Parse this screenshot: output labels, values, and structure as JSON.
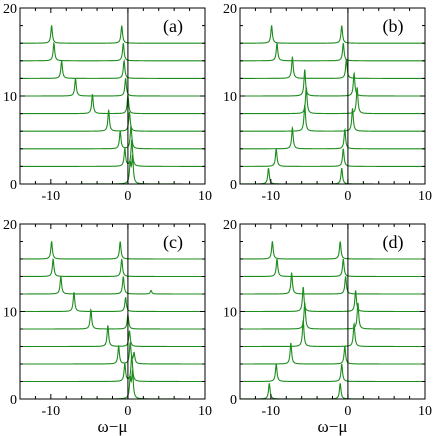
{
  "chart_data": [
    {
      "type": "line",
      "panel_label": "(a)",
      "xlabel": "",
      "ylabel": "",
      "xlim": [
        -14,
        10
      ],
      "ylim": [
        0,
        20
      ],
      "xticks": [
        -10,
        0,
        10
      ],
      "yticks": [
        0,
        10,
        20
      ],
      "xtick_labels": [
        "-10",
        "0",
        "10"
      ],
      "ytick_labels": [
        "0",
        "10",
        "20"
      ],
      "grid": false,
      "reference_line_x": 0,
      "series_color": "#1c8c1c",
      "traces": [
        {
          "offset": 0,
          "peaks": [
            [
              0.3,
              2.2
            ],
            [
              0.6,
              3.0
            ]
          ]
        },
        {
          "offset": 2,
          "peaks": [
            [
              -0.4,
              2.0
            ],
            [
              0.5,
              3.0
            ]
          ]
        },
        {
          "offset": 4,
          "peaks": [
            [
              -1.0,
              2.0
            ],
            [
              0.4,
              2.6
            ]
          ]
        },
        {
          "offset": 6,
          "peaks": [
            [
              -2.5,
              2.4
            ],
            [
              0.2,
              2.2
            ]
          ]
        },
        {
          "offset": 8,
          "peaks": [
            [
              -4.6,
              2.2
            ],
            [
              0.0,
              2.0
            ]
          ]
        },
        {
          "offset": 10,
          "peaks": [
            [
              -6.8,
              2.0
            ],
            [
              -0.3,
              2.0
            ]
          ]
        },
        {
          "offset": 12,
          "peaks": [
            [
              -8.6,
              2.0
            ],
            [
              -0.5,
              2.0
            ]
          ]
        },
        {
          "offset": 14,
          "peaks": [
            [
              -9.6,
              2.0
            ],
            [
              -0.6,
              2.0
            ]
          ]
        },
        {
          "offset": 16,
          "peaks": [
            [
              -9.9,
              2.0
            ],
            [
              -0.8,
              2.0
            ]
          ]
        }
      ]
    },
    {
      "type": "line",
      "panel_label": "(b)",
      "xlabel": "",
      "ylabel": "",
      "xlim": [
        -14,
        10
      ],
      "ylim": [
        0,
        20
      ],
      "xticks": [
        -10,
        0,
        10
      ],
      "yticks": [
        0,
        10,
        20
      ],
      "xtick_labels": [
        "-10",
        "0",
        "10"
      ],
      "ytick_labels": [
        "0",
        "10",
        "20"
      ],
      "grid": false,
      "reference_line_x": 0,
      "series_color": "#1c8c1c",
      "traces": [
        {
          "offset": 0,
          "peaks": [
            [
              -10.3,
              1.8
            ],
            [
              -0.8,
              1.8
            ]
          ]
        },
        {
          "offset": 2,
          "peaks": [
            [
              -9.3,
              2.0
            ],
            [
              -0.6,
              2.0
            ]
          ]
        },
        {
          "offset": 4,
          "peaks": [
            [
              -7.2,
              2.4
            ],
            [
              -0.4,
              2.2
            ]
          ]
        },
        {
          "offset": 6,
          "peaks": [
            [
              -5.6,
              3.0
            ],
            [
              0.6,
              2.6
            ]
          ]
        },
        {
          "offset": 8,
          "peaks": [
            [
              -5.4,
              3.0
            ],
            [
              1.2,
              3.0
            ]
          ]
        },
        {
          "offset": 10,
          "peaks": [
            [
              -5.6,
              3.0
            ],
            [
              0.8,
              2.6
            ]
          ]
        },
        {
          "offset": 12,
          "peaks": [
            [
              -7.2,
              2.4
            ],
            [
              -0.2,
              2.2
            ]
          ]
        },
        {
          "offset": 14,
          "peaks": [
            [
              -9.2,
              2.0
            ],
            [
              -0.6,
              2.0
            ]
          ]
        },
        {
          "offset": 16,
          "peaks": [
            [
              -9.9,
              2.0
            ],
            [
              -0.8,
              2.0
            ]
          ]
        }
      ]
    },
    {
      "type": "line",
      "panel_label": "(c)",
      "xlabel": "ω−μ",
      "ylabel": "",
      "xlim": [
        -14,
        10
      ],
      "ylim": [
        0,
        20
      ],
      "xticks": [
        -10,
        0,
        10
      ],
      "yticks": [
        0,
        10,
        20
      ],
      "xtick_labels": [
        "-10",
        "0",
        "10"
      ],
      "ytick_labels": [
        "0",
        "10",
        "20"
      ],
      "grid": false,
      "reference_line_x": 0,
      "series_color": "#1c8c1c",
      "traces": [
        {
          "offset": 0,
          "peaks": [
            [
              0.3,
              2.2
            ],
            [
              0.6,
              3.0
            ]
          ]
        },
        {
          "offset": 2,
          "peaks": [
            [
              -0.4,
              2.0
            ],
            [
              0.5,
              3.0
            ]
          ]
        },
        {
          "offset": 4,
          "peaks": [
            [
              -1.2,
              2.0
            ],
            [
              0.3,
              2.4
            ],
            [
              0.8,
              1.2
            ]
          ]
        },
        {
          "offset": 6,
          "peaks": [
            [
              -2.6,
              2.4
            ],
            [
              0.2,
              1.8
            ]
          ]
        },
        {
          "offset": 8,
          "peaks": [
            [
              -4.8,
              2.2
            ],
            [
              0.0,
              1.6
            ]
          ]
        },
        {
          "offset": 10,
          "peaks": [
            [
              -7.0,
              2.2
            ],
            [
              -0.3,
              1.6
            ]
          ]
        },
        {
          "offset": 12,
          "peaks": [
            [
              -8.7,
              2.0
            ],
            [
              -0.6,
              2.0
            ],
            [
              3.0,
              0.4
            ]
          ]
        },
        {
          "offset": 14,
          "peaks": [
            [
              -9.7,
              2.0
            ],
            [
              -0.8,
              2.0
            ]
          ]
        },
        {
          "offset": 16,
          "peaks": [
            [
              -9.9,
              2.0
            ],
            [
              -1.0,
              2.0
            ]
          ]
        }
      ]
    },
    {
      "type": "line",
      "panel_label": "(d)",
      "xlabel": "ω−μ",
      "ylabel": "",
      "xlim": [
        -14,
        10
      ],
      "ylim": [
        0,
        20
      ],
      "xticks": [
        -10,
        0,
        10
      ],
      "yticks": [
        0,
        10,
        20
      ],
      "xtick_labels": [
        "-10",
        "0",
        "10"
      ],
      "ytick_labels": [
        "0",
        "10",
        "20"
      ],
      "grid": false,
      "reference_line_x": 0,
      "series_color": "#1c8c1c",
      "traces": [
        {
          "offset": 0,
          "peaks": [
            [
              -10.2,
              1.8
            ],
            [
              -1.0,
              1.8
            ]
          ]
        },
        {
          "offset": 2,
          "peaks": [
            [
              -9.3,
              2.0
            ],
            [
              -0.8,
              2.0
            ]
          ]
        },
        {
          "offset": 4,
          "peaks": [
            [
              -7.4,
              2.4
            ],
            [
              -0.4,
              2.0
            ]
          ]
        },
        {
          "offset": 6,
          "peaks": [
            [
              -5.8,
              3.0
            ],
            [
              0.8,
              2.6
            ]
          ]
        },
        {
          "offset": 8,
          "peaks": [
            [
              -5.6,
              3.0
            ],
            [
              1.3,
              3.0
            ]
          ]
        },
        {
          "offset": 10,
          "peaks": [
            [
              -5.8,
              2.8
            ],
            [
              1.0,
              2.4
            ]
          ]
        },
        {
          "offset": 12,
          "peaks": [
            [
              -7.3,
              2.4
            ],
            [
              -0.3,
              2.0
            ]
          ]
        },
        {
          "offset": 14,
          "peaks": [
            [
              -9.2,
              2.0
            ],
            [
              -0.6,
              2.0
            ]
          ]
        },
        {
          "offset": 16,
          "peaks": [
            [
              -9.8,
              2.0
            ],
            [
              -1.0,
              2.0
            ]
          ]
        }
      ]
    }
  ]
}
